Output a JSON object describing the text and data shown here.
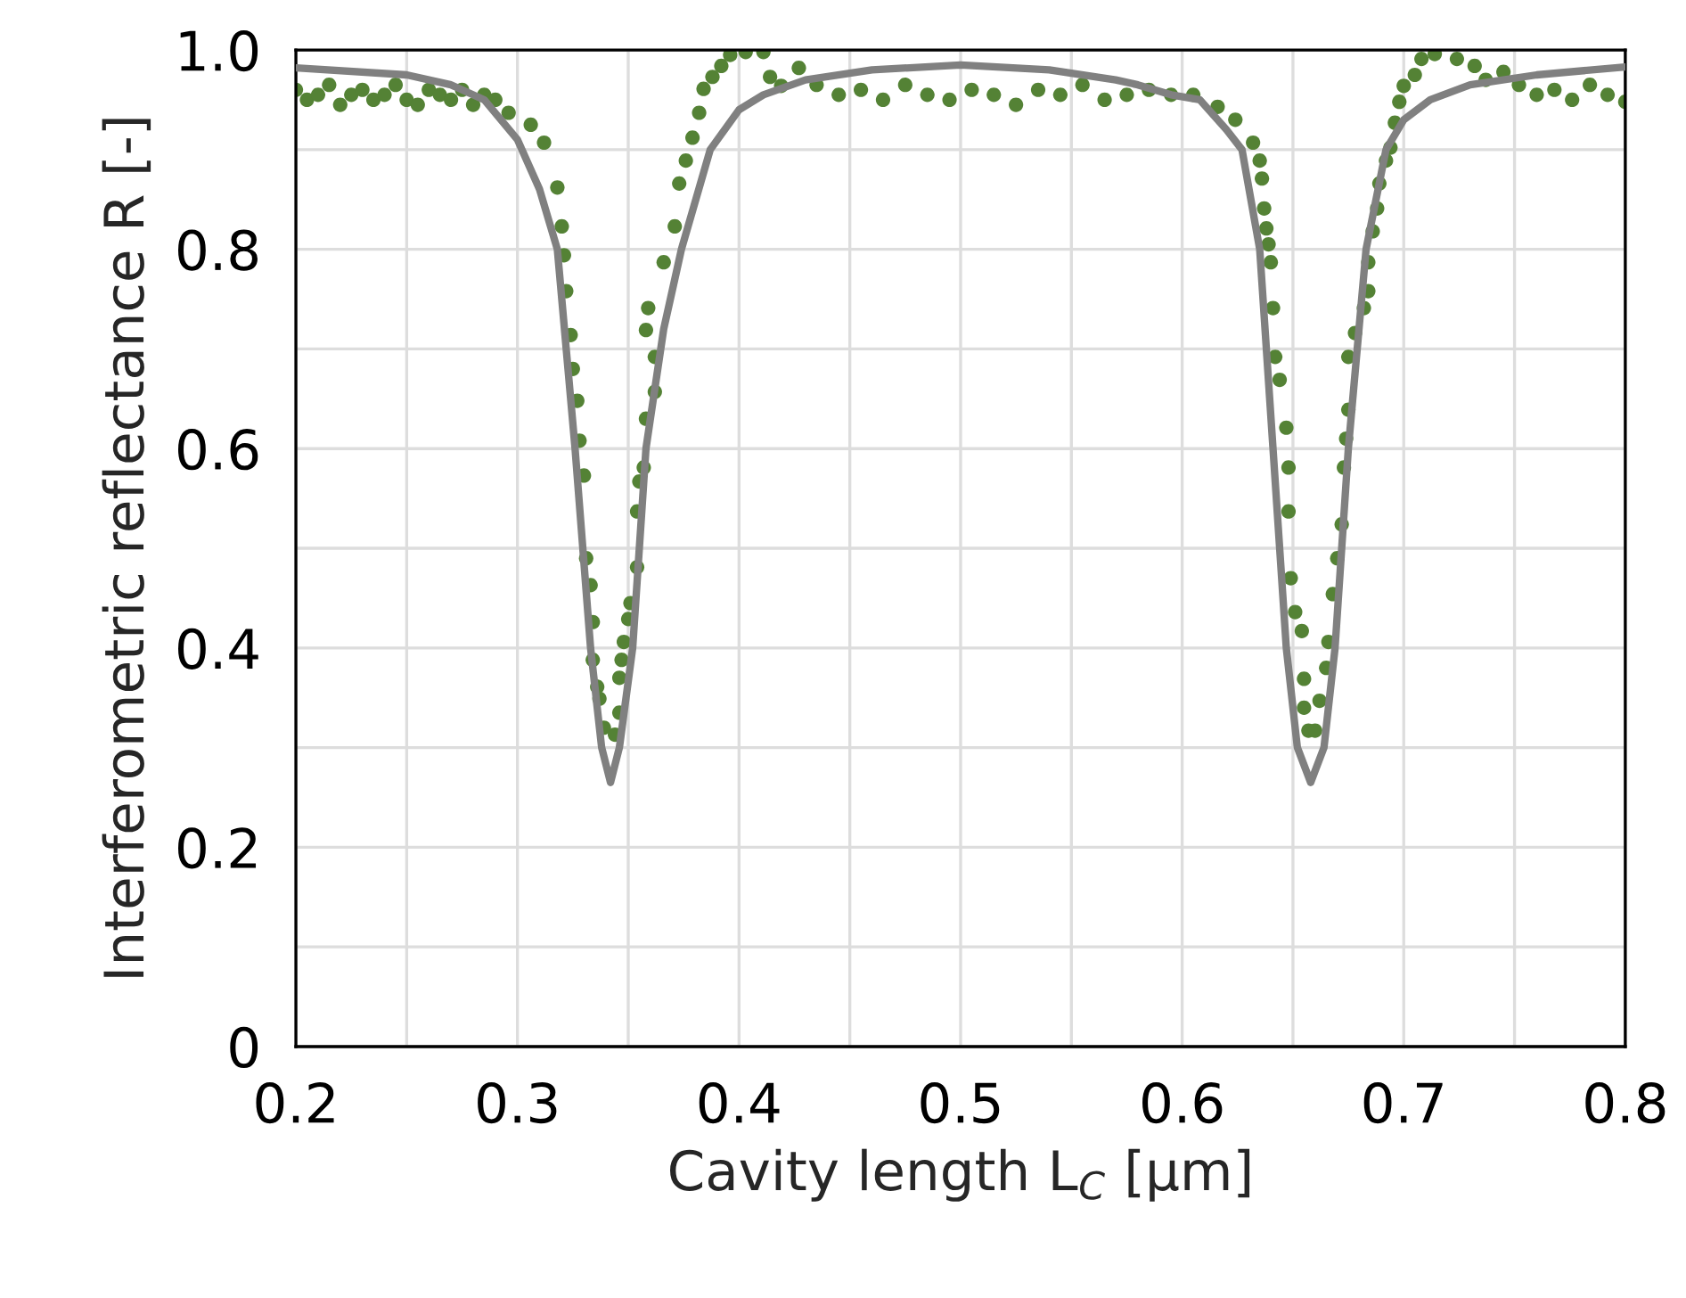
{
  "chart_data": {
    "type": "scatter",
    "xlabel": "Cavity length L$_{C}$ [μm]",
    "ylabel": "Interferometric reflectance R [-]",
    "xlim": [
      0.2,
      0.8
    ],
    "ylim": [
      0,
      1.0
    ],
    "xticks": [
      0.2,
      {
        "value": 0.25,
        "label": null
      },
      0.3,
      {
        "value": 0.35,
        "label": null
      },
      0.4,
      {
        "value": 0.45,
        "label": null
      },
      0.5,
      {
        "value": 0.55,
        "label": null
      },
      0.6,
      {
        "value": 0.65,
        "label": null
      },
      0.7,
      {
        "value": 0.75,
        "label": null
      },
      0.8
    ],
    "yticks": [
      0,
      {
        "value": 0.1,
        "label": null
      },
      0.2,
      {
        "value": 0.3,
        "label": null
      },
      0.4,
      {
        "value": 0.5,
        "label": null
      },
      0.6,
      {
        "value": 0.7,
        "label": null
      },
      0.8,
      {
        "value": 0.9,
        "label": null
      },
      {
        "value": 1.0,
        "label": "1.0"
      }
    ],
    "grid": true,
    "marker": "circle",
    "series": [
      {
        "color": "#548235",
        "x": [
          0.2,
          0.205,
          0.21,
          0.215,
          0.22,
          0.225,
          0.23,
          0.235,
          0.24,
          0.245,
          0.25,
          0.255,
          0.26,
          0.265,
          0.27,
          0.275,
          0.28,
          0.285,
          0.29,
          0.296,
          0.306,
          0.312,
          0.318,
          0.32,
          0.321,
          0.322,
          0.324,
          0.325,
          0.327,
          0.328,
          0.33,
          0.331,
          0.333,
          0.334,
          0.334,
          0.336,
          0.337,
          0.339,
          0.344,
          0.346,
          0.346,
          0.347,
          0.348,
          0.35,
          0.351,
          0.354,
          0.354,
          0.355,
          0.357,
          0.358,
          0.359,
          0.358,
          0.362,
          0.362,
          0.366,
          0.371,
          0.373,
          0.376,
          0.379,
          0.382,
          0.384,
          0.388,
          0.392,
          0.396,
          0.403,
          0.411,
          0.414,
          0.419,
          0.427,
          0.435,
          0.445,
          0.455,
          0.465,
          0.475,
          0.485,
          0.495,
          0.505,
          0.515,
          0.525,
          0.535,
          0.545,
          0.555,
          0.565,
          0.575,
          0.585,
          0.595,
          0.605,
          0.616,
          0.624,
          0.632,
          0.635,
          0.636,
          0.637,
          0.638,
          0.639,
          0.64,
          0.641,
          0.642,
          0.644,
          0.647,
          0.648,
          0.648,
          0.649,
          0.651,
          0.654,
          0.655,
          0.655,
          0.657,
          0.66,
          0.662,
          0.665,
          0.666,
          0.668,
          0.67,
          0.672,
          0.673,
          0.674,
          0.675,
          0.675,
          0.678,
          0.682,
          0.684,
          0.684,
          0.686,
          0.688,
          0.689,
          0.692,
          0.694,
          0.696,
          0.698,
          0.7,
          0.705,
          0.708,
          0.714,
          0.724,
          0.732,
          0.737,
          0.745,
          0.752,
          0.76,
          0.768,
          0.776,
          0.784,
          0.792,
          0.8
        ],
        "values": [
          0.96,
          0.95,
          0.955,
          0.965,
          0.945,
          0.955,
          0.96,
          0.95,
          0.955,
          0.965,
          0.95,
          0.945,
          0.96,
          0.955,
          0.95,
          0.96,
          0.945,
          0.955,
          0.95,
          0.937,
          0.925,
          0.907,
          0.862,
          0.823,
          0.794,
          0.758,
          0.714,
          0.68,
          0.648,
          0.608,
          0.573,
          0.49,
          0.463,
          0.426,
          0.388,
          0.361,
          0.349,
          0.32,
          0.313,
          0.335,
          0.37,
          0.388,
          0.406,
          0.429,
          0.445,
          0.481,
          0.537,
          0.567,
          0.581,
          0.63,
          0.741,
          0.719,
          0.692,
          0.657,
          0.787,
          0.823,
          0.866,
          0.889,
          0.912,
          0.937,
          0.961,
          0.973,
          0.984,
          0.995,
          0.998,
          0.998,
          0.973,
          0.964,
          0.982,
          0.965,
          0.955,
          0.96,
          0.95,
          0.965,
          0.955,
          0.95,
          0.96,
          0.955,
          0.945,
          0.96,
          0.955,
          0.965,
          0.95,
          0.955,
          0.96,
          0.955,
          0.955,
          0.943,
          0.93,
          0.907,
          0.889,
          0.871,
          0.841,
          0.821,
          0.805,
          0.787,
          0.741,
          0.692,
          0.669,
          0.621,
          0.581,
          0.537,
          0.47,
          0.436,
          0.417,
          0.369,
          0.34,
          0.317,
          0.317,
          0.347,
          0.38,
          0.406,
          0.454,
          0.49,
          0.524,
          0.581,
          0.61,
          0.639,
          0.692,
          0.716,
          0.741,
          0.758,
          0.787,
          0.818,
          0.841,
          0.866,
          0.889,
          0.902,
          0.927,
          0.948,
          0.964,
          0.975,
          0.991,
          0.996,
          0.991,
          0.984,
          0.97,
          0.978,
          0.965,
          0.955,
          0.96,
          0.95,
          0.965,
          0.955,
          0.948
        ]
      },
      {
        "type": "line",
        "color": "#808080",
        "marker": "none",
        "x": [
          0.2,
          0.25,
          0.27,
          0.285,
          0.3,
          0.31,
          0.318,
          0.326,
          0.333,
          0.338,
          0.342,
          0.346,
          0.352,
          0.358,
          0.366,
          0.374,
          0.387,
          0.4,
          0.411,
          0.43,
          0.46,
          0.5,
          0.54,
          0.57,
          0.58,
          0.595,
          0.608,
          0.62,
          0.627,
          0.635,
          0.641,
          0.647,
          0.652,
          0.658,
          0.664,
          0.669,
          0.675,
          0.683,
          0.692,
          0.7,
          0.712,
          0.73,
          0.76,
          0.8
        ],
        "values": [
          0.982,
          0.975,
          0.965,
          0.95,
          0.91,
          0.86,
          0.8,
          0.6,
          0.4,
          0.3,
          0.265,
          0.3,
          0.4,
          0.6,
          0.72,
          0.8,
          0.9,
          0.94,
          0.955,
          0.97,
          0.98,
          0.985,
          0.98,
          0.97,
          0.965,
          0.955,
          0.95,
          0.92,
          0.9,
          0.8,
          0.6,
          0.4,
          0.3,
          0.265,
          0.3,
          0.4,
          0.6,
          0.8,
          0.9,
          0.93,
          0.95,
          0.965,
          0.975,
          0.983
        ]
      }
    ]
  }
}
